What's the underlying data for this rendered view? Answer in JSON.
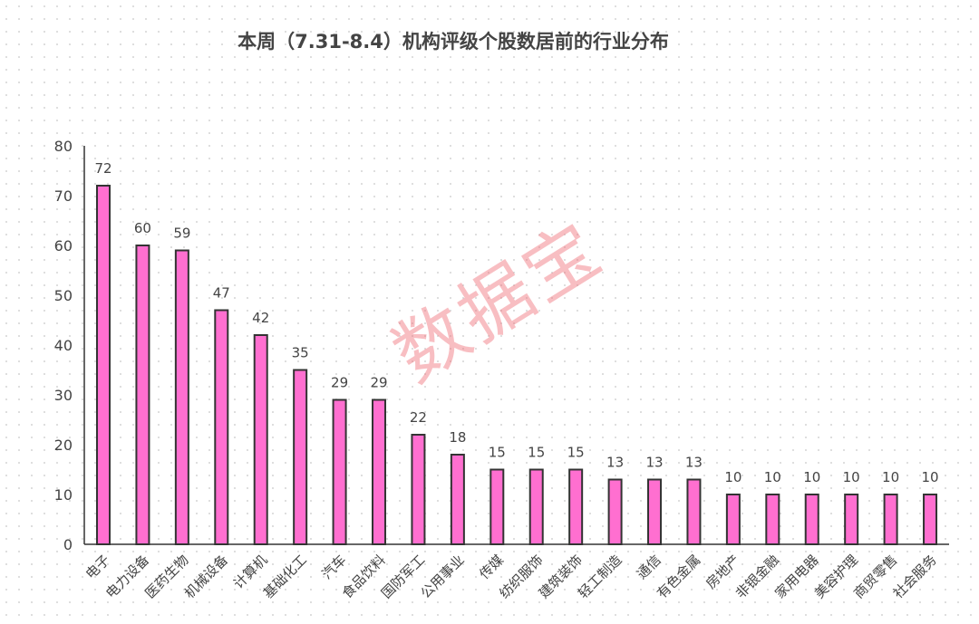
{
  "chart_data": {
    "type": "bar",
    "title": "本周（7.31-8.4）机构评级个股数居前的行业分布",
    "categories": [
      "电子",
      "电力设备",
      "医药生物",
      "机械设备",
      "计算机",
      "基础化工",
      "汽车",
      "食品饮料",
      "国防军工",
      "公用事业",
      "传媒",
      "纺织服饰",
      "建筑装饰",
      "轻工制造",
      "通信",
      "有色金属",
      "房地产",
      "非银金融",
      "家用电器",
      "美容护理",
      "商贸零售",
      "社会服务"
    ],
    "values": [
      72,
      60,
      59,
      47,
      42,
      35,
      29,
      29,
      22,
      18,
      15,
      15,
      15,
      13,
      13,
      13,
      10,
      10,
      10,
      10,
      10,
      10
    ],
    "yticks": [
      0,
      10,
      20,
      30,
      40,
      50,
      60,
      70,
      80
    ],
    "ylim": [
      0,
      80
    ],
    "xlabel": "",
    "ylabel": "",
    "bar_color": "#ff6fd0",
    "grid": false
  },
  "watermark": "数据宝"
}
